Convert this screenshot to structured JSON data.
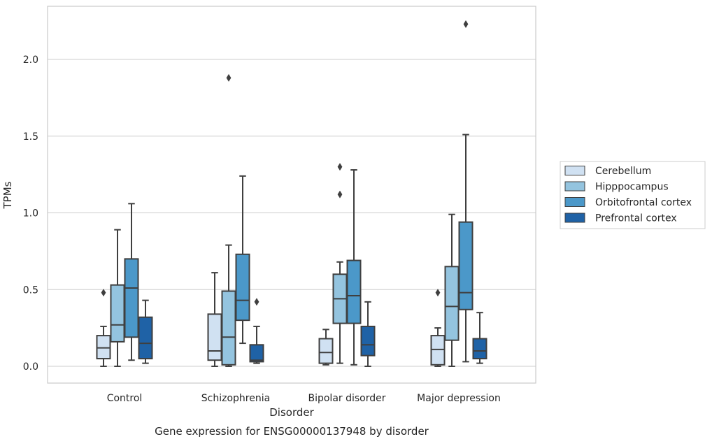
{
  "chart_data": {
    "type": "box",
    "title": "",
    "caption": "Gene expression for ENSG00000137948 by disorder",
    "xlabel": "Disorder",
    "ylabel": "TPMs",
    "ylim": [
      -0.11,
      2.34
    ],
    "yticks": [
      "0.0",
      "0.5",
      "1.0",
      "1.5",
      "2.0"
    ],
    "ytick_values": [
      0.0,
      0.5,
      1.0,
      1.5,
      2.0
    ],
    "grid": "horizontal",
    "legend_position": "right",
    "categories": [
      "Control",
      "Schizophrenia",
      "Bipolar disorder",
      "Major depression"
    ],
    "series": [
      {
        "name": "Cerebellum",
        "color": "#d0e1f2",
        "boxes": [
          {
            "whisker_low": 0.0,
            "q1": 0.05,
            "median": 0.12,
            "q3": 0.2,
            "whisker_high": 0.26,
            "outliers": [
              0.48
            ]
          },
          {
            "whisker_low": 0.0,
            "q1": 0.04,
            "median": 0.1,
            "q3": 0.34,
            "whisker_high": 0.61,
            "outliers": []
          },
          {
            "whisker_low": 0.01,
            "q1": 0.02,
            "median": 0.09,
            "q3": 0.18,
            "whisker_high": 0.24,
            "outliers": []
          },
          {
            "whisker_low": 0.0,
            "q1": 0.01,
            "median": 0.11,
            "q3": 0.2,
            "whisker_high": 0.25,
            "outliers": [
              0.48
            ]
          }
        ]
      },
      {
        "name": "Hipppocampus",
        "color": "#94c4df",
        "boxes": [
          {
            "whisker_low": 0.0,
            "q1": 0.16,
            "median": 0.27,
            "q3": 0.53,
            "whisker_high": 0.89,
            "outliers": []
          },
          {
            "whisker_low": 0.0,
            "q1": 0.01,
            "median": 0.19,
            "q3": 0.49,
            "whisker_high": 0.79,
            "outliers": [
              1.88
            ]
          },
          {
            "whisker_low": 0.02,
            "q1": 0.28,
            "median": 0.44,
            "q3": 0.6,
            "whisker_high": 0.68,
            "outliers": [
              1.3,
              1.12
            ]
          },
          {
            "whisker_low": 0.0,
            "q1": 0.17,
            "median": 0.39,
            "q3": 0.65,
            "whisker_high": 0.99,
            "outliers": []
          }
        ]
      },
      {
        "name": "Orbitofrontal cortex",
        "color": "#4b98c9",
        "boxes": [
          {
            "whisker_low": 0.04,
            "q1": 0.19,
            "median": 0.51,
            "q3": 0.7,
            "whisker_high": 1.06,
            "outliers": []
          },
          {
            "whisker_low": 0.15,
            "q1": 0.3,
            "median": 0.43,
            "q3": 0.73,
            "whisker_high": 1.24,
            "outliers": []
          },
          {
            "whisker_low": 0.01,
            "q1": 0.28,
            "median": 0.46,
            "q3": 0.69,
            "whisker_high": 1.28,
            "outliers": []
          },
          {
            "whisker_low": 0.03,
            "q1": 0.37,
            "median": 0.48,
            "q3": 0.94,
            "whisker_high": 1.51,
            "outliers": [
              2.23
            ]
          }
        ]
      },
      {
        "name": "Prefrontal cortex",
        "color": "#1f62a6",
        "boxes": [
          {
            "whisker_low": 0.02,
            "q1": 0.05,
            "median": 0.15,
            "q3": 0.32,
            "whisker_high": 0.43,
            "outliers": []
          },
          {
            "whisker_low": 0.02,
            "q1": 0.03,
            "median": 0.04,
            "q3": 0.14,
            "whisker_high": 0.26,
            "outliers": [
              0.42
            ]
          },
          {
            "whisker_low": 0.0,
            "q1": 0.07,
            "median": 0.14,
            "q3": 0.26,
            "whisker_high": 0.42,
            "outliers": []
          },
          {
            "whisker_low": 0.02,
            "q1": 0.05,
            "median": 0.1,
            "q3": 0.18,
            "whisker_high": 0.35,
            "outliers": []
          }
        ]
      }
    ]
  }
}
